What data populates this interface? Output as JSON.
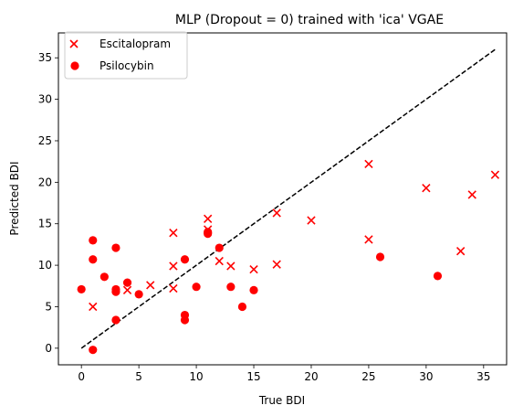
{
  "chart_data": {
    "type": "scatter",
    "title": "MLP (Dropout = 0) trained with 'ica' VGAE",
    "xlabel": "True BDI",
    "ylabel": "Predicted BDI",
    "xlim": [
      -2,
      37
    ],
    "ylim": [
      -2,
      38
    ],
    "xticks": [
      "0",
      "5",
      "10",
      "15",
      "20",
      "25",
      "30",
      "35"
    ],
    "yticks": [
      "0",
      "5",
      "10",
      "15",
      "20",
      "25",
      "30",
      "35"
    ],
    "grid": false,
    "legend_position": "top-left",
    "reference_line": {
      "style": "dashed",
      "color": "#000000",
      "x": [
        0,
        36
      ],
      "y": [
        0,
        36
      ]
    },
    "series": [
      {
        "name": "Escitalopram",
        "marker": "x",
        "color": "#ff0000",
        "points": [
          [
            1,
            5.0
          ],
          [
            4,
            7.0
          ],
          [
            6,
            7.6
          ],
          [
            8,
            7.2
          ],
          [
            8,
            9.9
          ],
          [
            8,
            13.9
          ],
          [
            11,
            14.3
          ],
          [
            11,
            15.6
          ],
          [
            12,
            10.5
          ],
          [
            13,
            9.9
          ],
          [
            15,
            9.5
          ],
          [
            17,
            10.1
          ],
          [
            17,
            16.3
          ],
          [
            20,
            15.4
          ],
          [
            25,
            13.1
          ],
          [
            25,
            22.2
          ],
          [
            30,
            19.3
          ],
          [
            33,
            11.7
          ],
          [
            34,
            18.5
          ],
          [
            36,
            20.9
          ]
        ]
      },
      {
        "name": "Psilocybin",
        "marker": "o",
        "color": "#ff0000",
        "points": [
          [
            0,
            7.1
          ],
          [
            1,
            -0.2
          ],
          [
            1,
            10.7
          ],
          [
            1,
            13.0
          ],
          [
            2,
            8.6
          ],
          [
            3,
            3.4
          ],
          [
            3,
            6.8
          ],
          [
            3,
            7.1
          ],
          [
            3,
            12.1
          ],
          [
            4,
            7.9
          ],
          [
            5,
            6.5
          ],
          [
            9,
            3.4
          ],
          [
            9,
            4.0
          ],
          [
            9,
            10.7
          ],
          [
            10,
            7.4
          ],
          [
            11,
            13.8
          ],
          [
            11,
            14.0
          ],
          [
            12,
            12.1
          ],
          [
            13,
            7.4
          ],
          [
            14,
            5.0
          ],
          [
            15,
            7.0
          ],
          [
            26,
            11.0
          ],
          [
            31,
            8.7
          ]
        ]
      }
    ]
  }
}
